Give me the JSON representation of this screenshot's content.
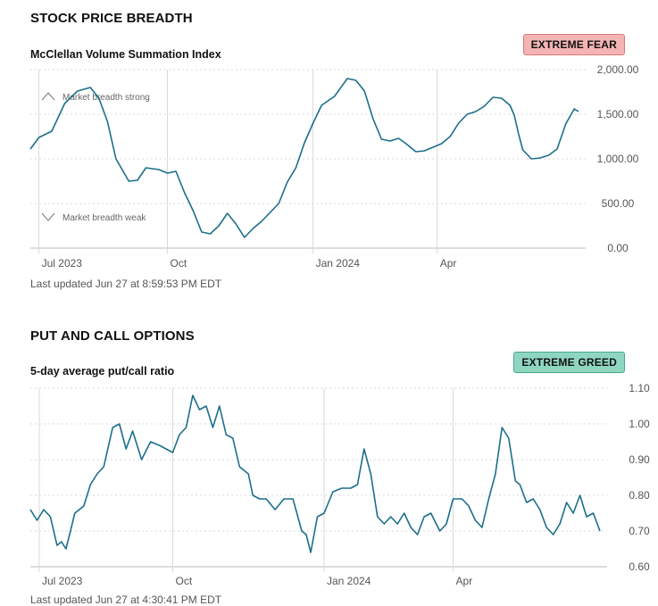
{
  "breadth": {
    "section_title": "STOCK PRICE BREADTH",
    "badge": "EXTREME FEAR",
    "updated": "Last updated Jun 27 at 8:59:53 PM EDT"
  },
  "options": {
    "section_title": "PUT AND CALL OPTIONS",
    "badge": "EXTREME GREED",
    "updated": "Last updated Jun 27 at 4:30:41 PM EDT"
  },
  "colors": {
    "line": "#1b6f8a",
    "grid": "#d9d9d9",
    "axis": "#bbbbbb"
  },
  "chart_data": [
    {
      "type": "line",
      "title": "McClellan Volume Summation Index",
      "xlabel": "",
      "ylabel": "",
      "xlim": [
        0,
        12.8
      ],
      "ylim": [
        0,
        2000
      ],
      "ytick_values": [
        0,
        500,
        1000,
        1500,
        2000
      ],
      "ytick_labels": [
        "0.00",
        "500.00",
        "1,000.00",
        "1,500.00",
        "2,000.00"
      ],
      "xtick_values": [
        0.2,
        3.2,
        6.6,
        9.5
      ],
      "xtick_labels": [
        "Jul 2023",
        "Oct",
        "Jan 2024",
        "Apr"
      ],
      "annotations": [
        "Market breadth strong",
        "Market breadth weak"
      ],
      "series": [
        {
          "name": "McClellan Volume Summation Index",
          "points": [
            [
              0.0,
              1110
            ],
            [
              0.2,
              1240
            ],
            [
              0.5,
              1310
            ],
            [
              0.8,
              1620
            ],
            [
              1.1,
              1760
            ],
            [
              1.4,
              1800
            ],
            [
              1.6,
              1680
            ],
            [
              1.8,
              1420
            ],
            [
              2.0,
              1000
            ],
            [
              2.3,
              750
            ],
            [
              2.5,
              760
            ],
            [
              2.7,
              900
            ],
            [
              3.0,
              880
            ],
            [
              3.2,
              840
            ],
            [
              3.4,
              860
            ],
            [
              3.6,
              620
            ],
            [
              3.8,
              420
            ],
            [
              4.0,
              180
            ],
            [
              4.2,
              160
            ],
            [
              4.4,
              250
            ],
            [
              4.6,
              390
            ],
            [
              4.8,
              270
            ],
            [
              5.0,
              120
            ],
            [
              5.2,
              220
            ],
            [
              5.4,
              300
            ],
            [
              5.6,
              400
            ],
            [
              5.8,
              500
            ],
            [
              6.0,
              740
            ],
            [
              6.2,
              900
            ],
            [
              6.4,
              1180
            ],
            [
              6.6,
              1400
            ],
            [
              6.8,
              1600
            ],
            [
              7.1,
              1700
            ],
            [
              7.4,
              1900
            ],
            [
              7.6,
              1880
            ],
            [
              7.8,
              1760
            ],
            [
              8.0,
              1450
            ],
            [
              8.2,
              1220
            ],
            [
              8.4,
              1200
            ],
            [
              8.6,
              1230
            ],
            [
              8.8,
              1160
            ],
            [
              9.0,
              1080
            ],
            [
              9.2,
              1090
            ],
            [
              9.4,
              1130
            ],
            [
              9.6,
              1170
            ],
            [
              9.8,
              1250
            ],
            [
              10.0,
              1400
            ],
            [
              10.2,
              1500
            ],
            [
              10.4,
              1530
            ],
            [
              10.6,
              1590
            ],
            [
              10.8,
              1690
            ],
            [
              11.0,
              1680
            ],
            [
              11.2,
              1600
            ],
            [
              11.3,
              1490
            ],
            [
              11.4,
              1280
            ],
            [
              11.5,
              1100
            ],
            [
              11.7,
              1000
            ],
            [
              11.9,
              1010
            ],
            [
              12.1,
              1040
            ],
            [
              12.3,
              1110
            ],
            [
              12.5,
              1390
            ],
            [
              12.7,
              1560
            ],
            [
              12.8,
              1530
            ]
          ]
        }
      ]
    },
    {
      "type": "line",
      "title": "5-day average put/call ratio",
      "xlabel": "",
      "ylabel": "",
      "xlim": [
        0,
        12.8
      ],
      "ylim": [
        0.6,
        1.1
      ],
      "ytick_values": [
        0.6,
        0.7,
        0.8,
        0.9,
        1.0,
        1.1
      ],
      "ytick_labels": [
        "0.60",
        "0.70",
        "0.80",
        "0.90",
        "1.00",
        "1.10"
      ],
      "xtick_values": [
        0.2,
        3.2,
        6.6,
        9.5
      ],
      "xtick_labels": [
        "Jul 2023",
        "Oct",
        "Jan 2024",
        "Apr"
      ],
      "series": [
        {
          "name": "5-day average put/call ratio",
          "points": [
            [
              0.0,
              0.76
            ],
            [
              0.15,
              0.73
            ],
            [
              0.3,
              0.76
            ],
            [
              0.45,
              0.74
            ],
            [
              0.6,
              0.66
            ],
            [
              0.7,
              0.67
            ],
            [
              0.8,
              0.65
            ],
            [
              0.9,
              0.7
            ],
            [
              1.0,
              0.75
            ],
            [
              1.2,
              0.77
            ],
            [
              1.35,
              0.83
            ],
            [
              1.5,
              0.86
            ],
            [
              1.65,
              0.88
            ],
            [
              1.85,
              0.99
            ],
            [
              2.0,
              1.0
            ],
            [
              2.15,
              0.93
            ],
            [
              2.3,
              0.98
            ],
            [
              2.5,
              0.9
            ],
            [
              2.7,
              0.95
            ],
            [
              2.9,
              0.94
            ],
            [
              3.05,
              0.93
            ],
            [
              3.2,
              0.92
            ],
            [
              3.35,
              0.97
            ],
            [
              3.5,
              0.99
            ],
            [
              3.65,
              1.08
            ],
            [
              3.8,
              1.04
            ],
            [
              3.95,
              1.05
            ],
            [
              4.1,
              0.99
            ],
            [
              4.25,
              1.05
            ],
            [
              4.4,
              0.97
            ],
            [
              4.55,
              0.96
            ],
            [
              4.7,
              0.88
            ],
            [
              4.9,
              0.86
            ],
            [
              5.0,
              0.8
            ],
            [
              5.15,
              0.79
            ],
            [
              5.3,
              0.79
            ],
            [
              5.5,
              0.76
            ],
            [
              5.7,
              0.79
            ],
            [
              5.9,
              0.79
            ],
            [
              6.1,
              0.7
            ],
            [
              6.2,
              0.69
            ],
            [
              6.3,
              0.64
            ],
            [
              6.45,
              0.74
            ],
            [
              6.6,
              0.75
            ],
            [
              6.8,
              0.81
            ],
            [
              7.0,
              0.82
            ],
            [
              7.2,
              0.82
            ],
            [
              7.35,
              0.83
            ],
            [
              7.5,
              0.93
            ],
            [
              7.65,
              0.86
            ],
            [
              7.8,
              0.74
            ],
            [
              7.95,
              0.72
            ],
            [
              8.1,
              0.74
            ],
            [
              8.25,
              0.72
            ],
            [
              8.4,
              0.75
            ],
            [
              8.55,
              0.71
            ],
            [
              8.7,
              0.69
            ],
            [
              8.85,
              0.74
            ],
            [
              9.0,
              0.75
            ],
            [
              9.2,
              0.7
            ],
            [
              9.35,
              0.72
            ],
            [
              9.5,
              0.79
            ],
            [
              9.7,
              0.79
            ],
            [
              9.85,
              0.77
            ],
            [
              10.0,
              0.73
            ],
            [
              10.15,
              0.71
            ],
            [
              10.3,
              0.79
            ],
            [
              10.45,
              0.86
            ],
            [
              10.6,
              0.99
            ],
            [
              10.75,
              0.96
            ],
            [
              10.9,
              0.84
            ],
            [
              11.0,
              0.83
            ],
            [
              11.15,
              0.78
            ],
            [
              11.3,
              0.79
            ],
            [
              11.45,
              0.76
            ],
            [
              11.6,
              0.71
            ],
            [
              11.75,
              0.69
            ],
            [
              11.9,
              0.72
            ],
            [
              12.05,
              0.78
            ],
            [
              12.2,
              0.75
            ],
            [
              12.35,
              0.8
            ],
            [
              12.5,
              0.74
            ],
            [
              12.65,
              0.75
            ],
            [
              12.8,
              0.7
            ]
          ]
        }
      ]
    }
  ]
}
